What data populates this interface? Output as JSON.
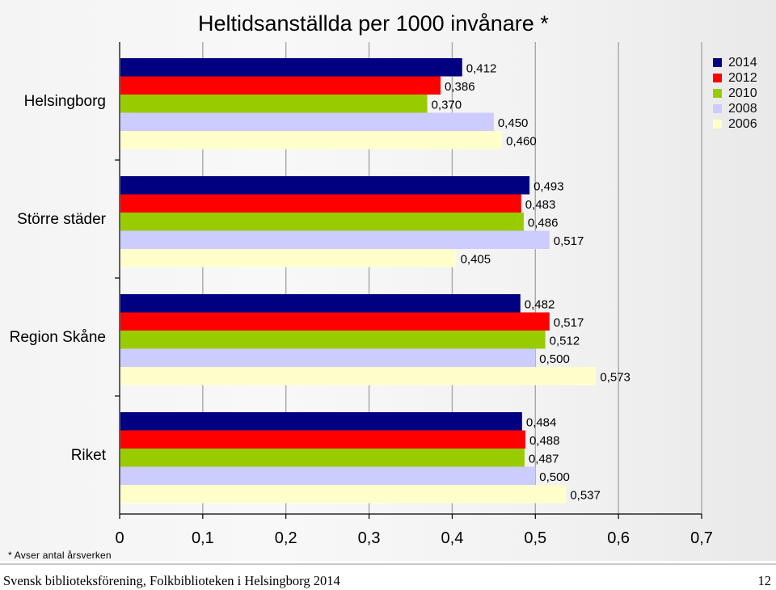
{
  "chart_data": {
    "type": "bar",
    "orientation": "horizontal",
    "title": "Heltidsanställda per 1000 invånare *",
    "categories": [
      "Helsingborg",
      "Större städer",
      "Region Skåne",
      "Riket"
    ],
    "series": [
      {
        "name": "2014",
        "color": "#000080",
        "values": [
          0.412,
          0.493,
          0.482,
          0.484
        ],
        "labels": [
          "0,412",
          "0,493",
          "0,482",
          "0,484"
        ]
      },
      {
        "name": "2012",
        "color": "#ff0000",
        "values": [
          0.386,
          0.483,
          0.517,
          0.488
        ],
        "labels": [
          "0,386",
          "0,483",
          "0,517",
          "0,488"
        ]
      },
      {
        "name": "2010",
        "color": "#99cc00",
        "values": [
          0.37,
          0.486,
          0.512,
          0.487
        ],
        "labels": [
          "0,370",
          "0,486",
          "0,512",
          "0,487"
        ]
      },
      {
        "name": "2008",
        "color": "#ccccff",
        "values": [
          0.45,
          0.517,
          0.5,
          0.5
        ],
        "labels": [
          "0,450",
          "0,517",
          "0,500",
          "0,500"
        ]
      },
      {
        "name": "2006",
        "color": "#ffffcc",
        "values": [
          0.46,
          0.405,
          0.573,
          0.537
        ],
        "labels": [
          "0,460",
          "0,405",
          "0,573",
          "0,537"
        ]
      }
    ],
    "xlim": [
      0,
      0.7
    ],
    "xticks": [
      0,
      0.1,
      0.2,
      0.3,
      0.4,
      0.5,
      0.6,
      0.7
    ],
    "xtick_labels": [
      "0",
      "0,1",
      "0,2",
      "0,3",
      "0,4",
      "0,5",
      "0,6",
      "0,7"
    ],
    "grid": true,
    "legend_position": "top-right",
    "legend_order": [
      "2014",
      "2012",
      "2010",
      "2008",
      "2006"
    ]
  },
  "footnote": "* Avser antal årsverken",
  "footer": {
    "source": "Svensk biblioteksförening, Folkbiblioteken i Helsingborg 2014",
    "page_number": "12"
  }
}
